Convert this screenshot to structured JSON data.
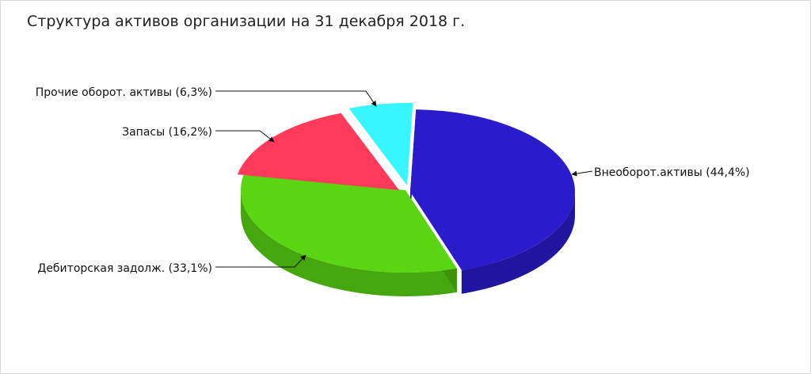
{
  "chart_data": {
    "type": "pie",
    "title": "Структура активов организации на 31 декабря 2018 г.",
    "slices": [
      {
        "label": "Внеоборот.активы (44,4%)",
        "value": 44.4,
        "color": "#2a1ccc"
      },
      {
        "label": "Дебиторская задолж. (33,1%)",
        "value": 33.1,
        "color": "#5ad512"
      },
      {
        "label": "Запасы (16,2%)",
        "value": 16.2,
        "color": "#ff3a5a"
      },
      {
        "label": "Прочие оборот. активы (6,3%)",
        "value": 6.3,
        "color": "#38f6fe"
      }
    ]
  }
}
